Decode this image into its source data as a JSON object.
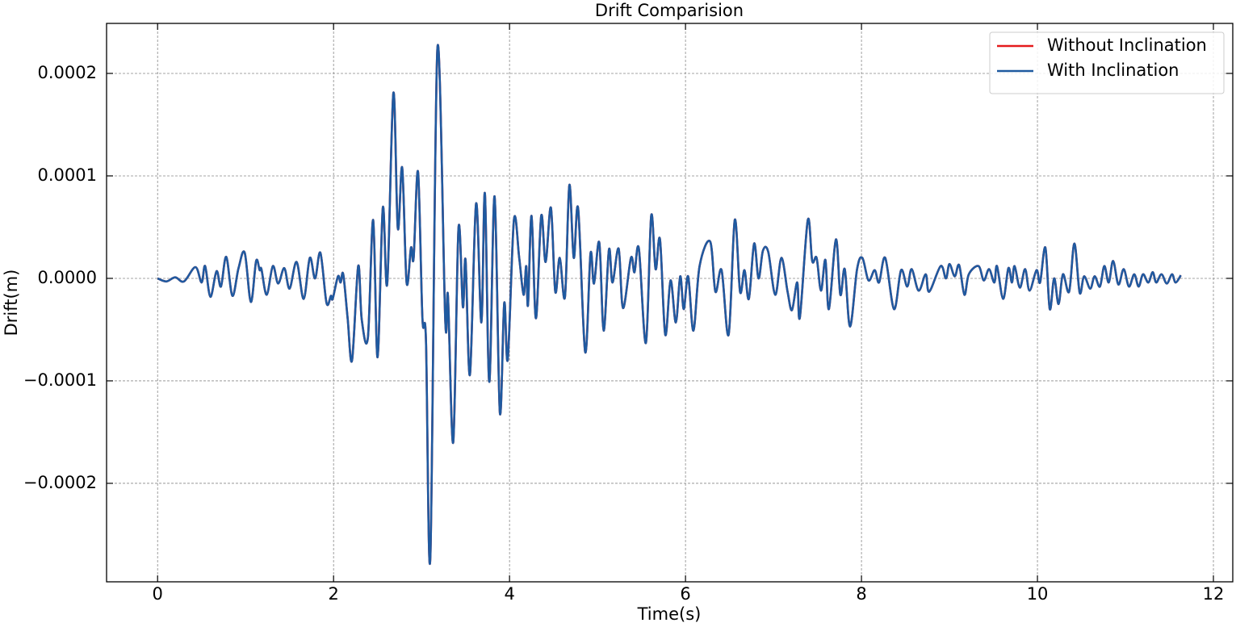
{
  "chart_data": {
    "type": "line",
    "title": "Drift Comparision",
    "x_label": "Time(s)",
    "y_label": "Drift(m)",
    "grid": true,
    "legend": "upper right",
    "xlim": [
      -0.58,
      12.22
    ],
    "xticks": [
      0,
      2,
      4,
      6,
      8,
      10,
      12
    ],
    "ylim": [
      -0.0002961,
      0.0002488
    ],
    "yticks": [
      {
        "value": -0.0002,
        "label": "−0.0002"
      },
      {
        "value": -0.0001,
        "label": "−0.0001"
      },
      {
        "value": 0,
        "label": "0.0000"
      },
      {
        "value": 0.0001,
        "label": "0.0001"
      },
      {
        "value": 0.0002,
        "label": "0.0002"
      }
    ],
    "x": [
      0,
      0.1,
      0.2,
      0.3,
      0.43,
      0.5,
      0.54,
      0.6,
      0.67,
      0.72,
      0.78,
      0.85,
      0.92,
      0.99,
      1.06,
      1.12,
      1.16,
      1.18,
      1.24,
      1.31,
      1.37,
      1.44,
      1.5,
      1.58,
      1.66,
      1.73,
      1.79,
      1.85,
      1.92,
      1.97,
      1.99,
      2.05,
      2.08,
      2.11,
      2.16,
      2.21,
      2.28,
      2.32,
      2.39,
      2.45,
      2.5,
      2.56,
      2.61,
      2.68,
      2.73,
      2.78,
      2.83,
      2.88,
      2.91,
      2.96,
      3.01,
      3.05,
      3.1,
      3.18,
      3.27,
      3.3,
      3.36,
      3.42,
      3.47,
      3.5,
      3.55,
      3.62,
      3.68,
      3.72,
      3.77,
      3.83,
      3.89,
      3.94,
      3.98,
      4.05,
      4.11,
      4.16,
      4.19,
      4.21,
      4.25,
      4.3,
      4.36,
      4.41,
      4.47,
      4.52,
      4.57,
      4.63,
      4.68,
      4.73,
      4.78,
      4.86,
      4.92,
      4.96,
      5.02,
      5.07,
      5.13,
      5.17,
      5.24,
      5.29,
      5.38,
      5.42,
      5.47,
      5.55,
      5.61,
      5.66,
      5.71,
      5.77,
      5.83,
      5.89,
      5.94,
      5.98,
      6.03,
      6.09,
      6.16,
      6.28,
      6.34,
      6.41,
      6.49,
      6.56,
      6.62,
      6.67,
      6.72,
      6.78,
      6.83,
      6.88,
      6.94,
      7.02,
      7.09,
      7.16,
      7.21,
      7.27,
      7.3,
      7.39,
      7.44,
      7.49,
      7.54,
      7.59,
      7.63,
      7.71,
      7.76,
      7.81,
      7.87,
      7.95,
      8.01,
      8.08,
      8.15,
      8.2,
      8.27,
      8.37,
      8.45,
      8.52,
      8.57,
      8.65,
      8.73,
      8.77,
      8.9,
      8.96,
      9.0,
      9.06,
      9.11,
      9.17,
      9.22,
      9.33,
      9.39,
      9.45,
      9.51,
      9.54,
      9.61,
      9.67,
      9.71,
      9.74,
      9.8,
      9.86,
      9.91,
      9.99,
      10.03,
      10.09,
      10.14,
      10.19,
      10.24,
      10.29,
      10.36,
      10.42,
      10.48,
      10.53,
      10.6,
      10.65,
      10.71,
      10.76,
      10.81,
      10.86,
      10.92,
      10.98,
      11.04,
      11.1,
      11.15,
      11.2,
      11.26,
      11.31,
      11.35,
      11.41,
      11.47,
      11.53,
      11.57,
      11.63
    ],
    "series": [
      {
        "name": "Without Inclination",
        "color": "#e41a1c",
        "values": [
          0,
          -3e-06,
          1e-06,
          -3e-06,
          1.1e-05,
          -4e-06,
          1.2e-05,
          -1.8e-05,
          7e-06,
          -8e-06,
          2.1e-05,
          -1.7e-05,
          1e-05,
          2.5e-05,
          -2.3e-05,
          1.7e-05,
          8e-06,
          9e-06,
          -1.6e-05,
          1.2e-05,
          -5e-06,
          1e-05,
          -1e-05,
          1.6e-05,
          -2e-05,
          2e-05,
          0,
          2.5e-05,
          -2.4e-05,
          -1.7e-05,
          -2e-05,
          2e-06,
          -4e-06,
          4e-06,
          -3.9e-05,
          -8e-05,
          1.2e-05,
          -4e-05,
          -5.8e-05,
          5.7e-05,
          -7.7e-05,
          6.9e-05,
          -5e-06,
          0.000181,
          4.9e-05,
          0.000108,
          -4e-06,
          3e-05,
          2e-05,
          0.000104,
          -3.9e-05,
          -6e-05,
          -0.000272,
          0.000224,
          -4.2e-05,
          -1.7e-05,
          -0.00016,
          4.9e-05,
          -2.8e-05,
          1.8e-05,
          -9.4e-05,
          7.3e-05,
          -4.3e-05,
          8.3e-05,
          -0.000101,
          8e-05,
          -0.000131,
          -2.4e-05,
          -7.9e-05,
          5.7e-05,
          2e-05,
          -1.6e-05,
          1.2e-05,
          -2.6e-05,
          6.1e-05,
          -3.9e-05,
          6.1e-05,
          1.6e-05,
          6.9e-05,
          -1.3e-05,
          2e-05,
          -1.8e-05,
          9.1e-05,
          2e-05,
          6.8e-05,
          -7.2e-05,
          2.4e-05,
          -5e-06,
          3.5e-05,
          -5.1e-05,
          2.8e-05,
          -4e-06,
          2.9e-05,
          -2.9e-05,
          2e-05,
          6e-06,
          2.9e-05,
          -6.3e-05,
          6.1e-05,
          9e-06,
          3.8e-05,
          -5.5e-05,
          -2e-06,
          -4.3e-05,
          2e-06,
          -3e-05,
          2e-06,
          -5.1e-05,
          1.2e-05,
          3.6e-05,
          -1.3e-05,
          8e-06,
          -5.5e-05,
          5.7e-05,
          -1.3e-05,
          8e-06,
          -2e-05,
          3.4e-05,
          0,
          2.7e-05,
          2.6e-05,
          -1.6e-05,
          2e-05,
          -1.3e-05,
          -3.1e-05,
          -4e-06,
          -3.8e-05,
          5.7e-05,
          1.7e-05,
          2e-05,
          -1.2e-05,
          1.8e-05,
          -3e-05,
          3.8e-05,
          -1.6e-05,
          9e-06,
          -4.7e-05,
          9e-06,
          2e-05,
          -2e-06,
          8e-06,
          -4e-06,
          2e-05,
          -3e-05,
          8e-06,
          -8e-06,
          9e-06,
          -1.2e-05,
          4e-06,
          -1.3e-05,
          1.2e-05,
          0,
          1.4e-05,
          2e-06,
          1.3e-05,
          -1.6e-05,
          4e-06,
          1.2e-05,
          -2e-06,
          9e-06,
          -4e-06,
          1.2e-05,
          -2e-05,
          1e-05,
          -4e-06,
          1.2e-05,
          -9e-06,
          9e-06,
          -1.2e-05,
          8e-06,
          -4e-06,
          3e-05,
          -3e-05,
          0,
          -2.5e-05,
          4e-06,
          -1.3e-05,
          3.4e-05,
          -1.4e-05,
          2e-06,
          -1e-05,
          2e-06,
          -8e-06,
          1.2e-05,
          -4e-06,
          1.7e-05,
          -6e-06,
          9e-06,
          -8e-06,
          4e-06,
          -8e-06,
          4e-06,
          -4e-06,
          6e-06,
          -4e-06,
          4e-06,
          -5e-06,
          4e-06,
          -4e-06,
          3e-06
        ]
      },
      {
        "name": "With Inclination",
        "color": "#1f5aa0",
        "values": [
          0,
          -3e-06,
          1e-06,
          -3e-06,
          1.1e-05,
          -4e-06,
          1.2e-05,
          -1.8e-05,
          7e-06,
          -8e-06,
          2.1e-05,
          -1.7e-05,
          1e-05,
          2.5e-05,
          -2.3e-05,
          1.7e-05,
          8e-06,
          9e-06,
          -1.6e-05,
          1.2e-05,
          -5e-06,
          1e-05,
          -1e-05,
          1.6e-05,
          -2e-05,
          2e-05,
          0,
          2.5e-05,
          -2.4e-05,
          -1.7e-05,
          -2e-05,
          2e-06,
          -4e-06,
          4e-06,
          -3.9e-05,
          -8e-05,
          1.2e-05,
          -4e-05,
          -5.8e-05,
          5.7e-05,
          -7.7e-05,
          6.9e-05,
          -5e-06,
          0.000181,
          4.9e-05,
          0.000108,
          -4e-06,
          3e-05,
          2e-05,
          0.000104,
          -3.9e-05,
          -6e-05,
          -0.000272,
          0.000224,
          -4.2e-05,
          -1.7e-05,
          -0.00016,
          4.9e-05,
          -2.8e-05,
          1.8e-05,
          -9.4e-05,
          7.3e-05,
          -4.3e-05,
          8.3e-05,
          -0.000101,
          8e-05,
          -0.000131,
          -2.4e-05,
          -7.9e-05,
          5.7e-05,
          2e-05,
          -1.6e-05,
          1.2e-05,
          -2.6e-05,
          6.1e-05,
          -3.9e-05,
          6.1e-05,
          1.6e-05,
          6.9e-05,
          -1.3e-05,
          2e-05,
          -1.8e-05,
          9.1e-05,
          2e-05,
          6.8e-05,
          -7.2e-05,
          2.4e-05,
          -5e-06,
          3.5e-05,
          -5.1e-05,
          2.8e-05,
          -4e-06,
          2.9e-05,
          -2.9e-05,
          2e-05,
          6e-06,
          2.9e-05,
          -6.3e-05,
          6.1e-05,
          9e-06,
          3.8e-05,
          -5.5e-05,
          -2e-06,
          -4.3e-05,
          2e-06,
          -3e-05,
          2e-06,
          -5.1e-05,
          1.2e-05,
          3.6e-05,
          -1.3e-05,
          8e-06,
          -5.5e-05,
          5.7e-05,
          -1.3e-05,
          8e-06,
          -2e-05,
          3.4e-05,
          0,
          2.7e-05,
          2.6e-05,
          -1.6e-05,
          2e-05,
          -1.3e-05,
          -3.1e-05,
          -4e-06,
          -3.8e-05,
          5.7e-05,
          1.7e-05,
          2e-05,
          -1.2e-05,
          1.8e-05,
          -3e-05,
          3.8e-05,
          -1.6e-05,
          9e-06,
          -4.7e-05,
          9e-06,
          2e-05,
          -2e-06,
          8e-06,
          -4e-06,
          2e-05,
          -3e-05,
          8e-06,
          -8e-06,
          9e-06,
          -1.2e-05,
          4e-06,
          -1.3e-05,
          1.2e-05,
          0,
          1.4e-05,
          2e-06,
          1.3e-05,
          -1.6e-05,
          4e-06,
          1.2e-05,
          -2e-06,
          9e-06,
          -4e-06,
          1.2e-05,
          -2e-05,
          1e-05,
          -4e-06,
          1.2e-05,
          -9e-06,
          9e-06,
          -1.2e-05,
          8e-06,
          -4e-06,
          3e-05,
          -3e-05,
          0,
          -2.5e-05,
          4e-06,
          -1.3e-05,
          3.4e-05,
          -1.4e-05,
          2e-06,
          -1e-05,
          2e-06,
          -8e-06,
          1.2e-05,
          -4e-06,
          1.7e-05,
          -6e-06,
          9e-06,
          -8e-06,
          4e-06,
          -8e-06,
          4e-06,
          -4e-06,
          6e-06,
          -4e-06,
          4e-06,
          -5e-06,
          4e-06,
          -4e-06,
          3e-06
        ]
      }
    ]
  }
}
